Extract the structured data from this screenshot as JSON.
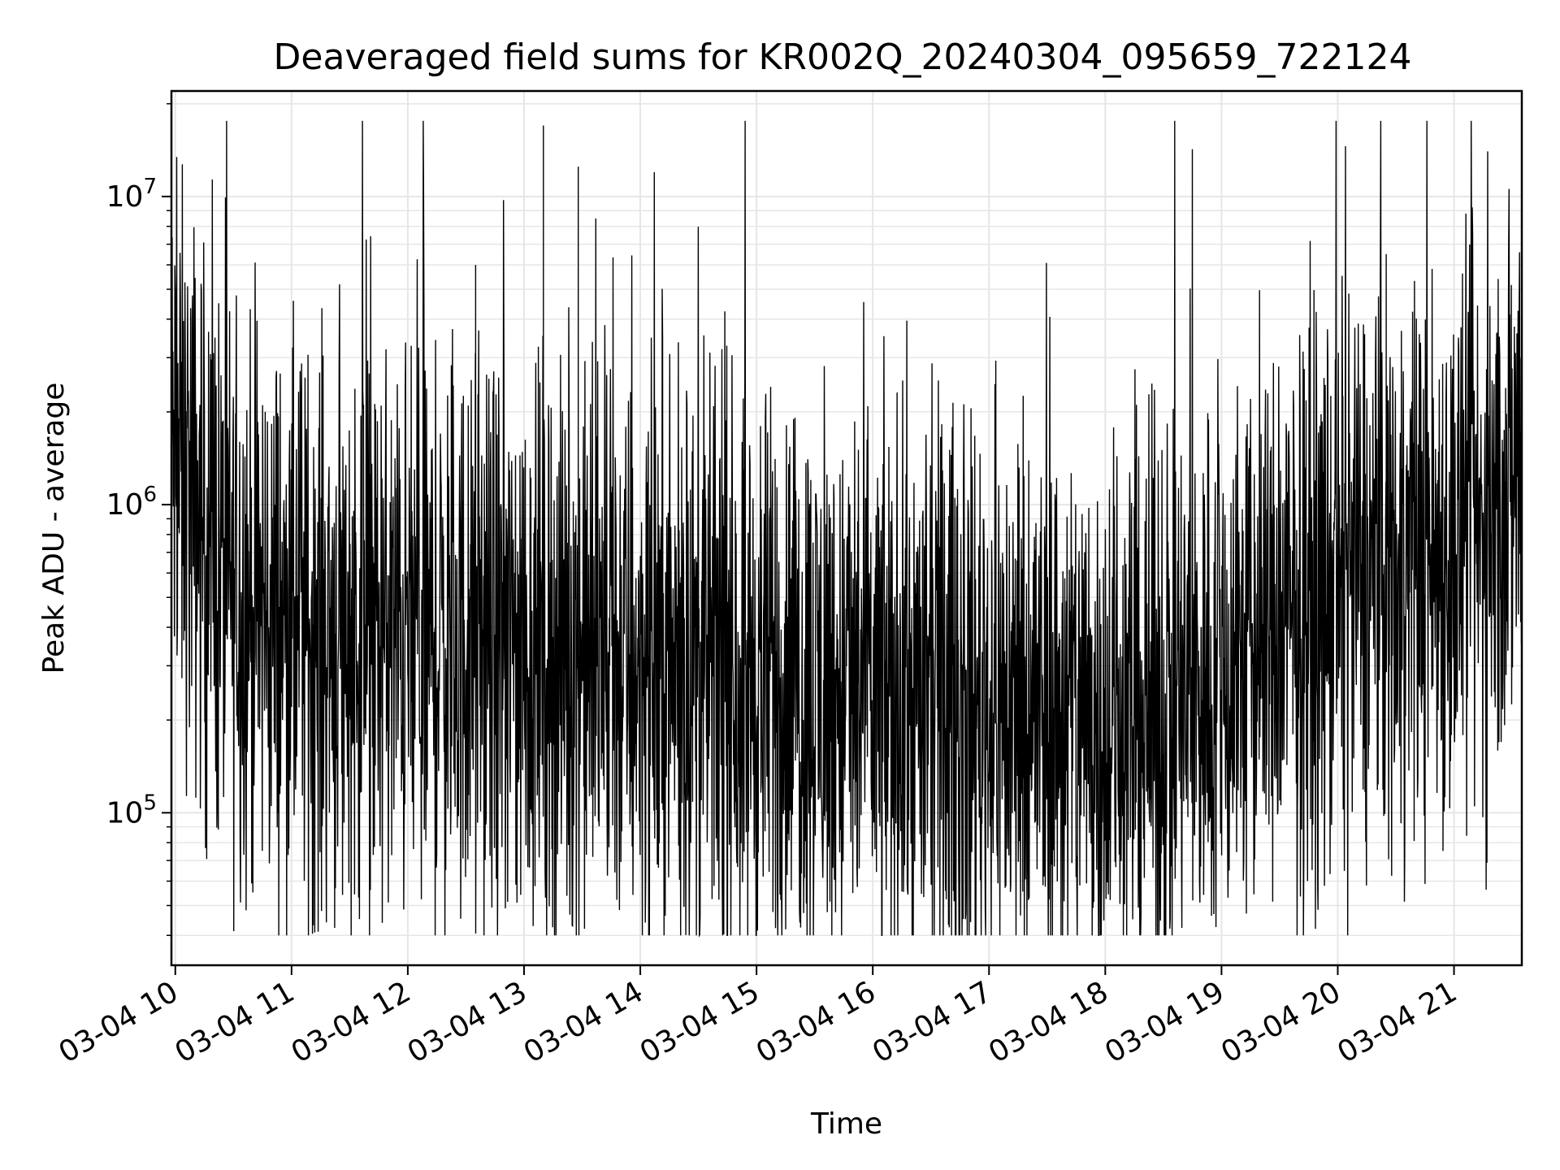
{
  "chart_data": {
    "type": "line",
    "title": "Deaveraged field sums for KR002Q_20240304_095659_722124",
    "xlabel": "Time",
    "ylabel": "Peak ADU - average",
    "yscale": "log",
    "grid": true,
    "line_color": "#000000",
    "grid_color": "#e6e6e6",
    "xlim": [
      "2024-03-04 09:58",
      "2024-03-04 21:35"
    ],
    "ylim": [
      32000,
      22000000
    ],
    "x_ticks": [
      "03-04 10",
      "03-04 11",
      "03-04 12",
      "03-04 13",
      "03-04 14",
      "03-04 15",
      "03-04 16",
      "03-04 17",
      "03-04 18",
      "03-04 19",
      "03-04 20",
      "03-04 21"
    ],
    "y_ticks": [
      {
        "base": "10",
        "exp": "5"
      },
      {
        "base": "10",
        "exp": "6"
      },
      {
        "base": "10",
        "exp": "7"
      }
    ],
    "series": [
      {
        "x": [
          "2024-03-04 09:58",
          "2024-03-04 10:05",
          "2024-03-04 10:15",
          "2024-03-04 10:30",
          "2024-03-04 11:00",
          "2024-03-04 11:30",
          "2024-03-04 12:00",
          "2024-03-04 12:30",
          "2024-03-04 13:00",
          "2024-03-04 13:30",
          "2024-03-04 14:00",
          "2024-03-04 14:30",
          "2024-03-04 15:00",
          "2024-03-04 15:30",
          "2024-03-04 16:00",
          "2024-03-04 16:30",
          "2024-03-04 17:00",
          "2024-03-04 17:30",
          "2024-03-04 18:00",
          "2024-03-04 18:30",
          "2024-03-04 19:00",
          "2024-03-04 19:30",
          "2024-03-04 20:00",
          "2024-03-04 20:30",
          "2024-03-04 21:00",
          "2024-03-04 21:20",
          "2024-03-04 21:35"
        ],
        "y": [
          1500000,
          1200000,
          800000,
          500000,
          400000,
          380000,
          360000,
          340000,
          330000,
          320000,
          300000,
          290000,
          270000,
          250000,
          240000,
          230000,
          220000,
          210000,
          200000,
          210000,
          280000,
          380000,
          520000,
          650000,
          700000,
          800000,
          1500000
        ]
      }
    ]
  }
}
